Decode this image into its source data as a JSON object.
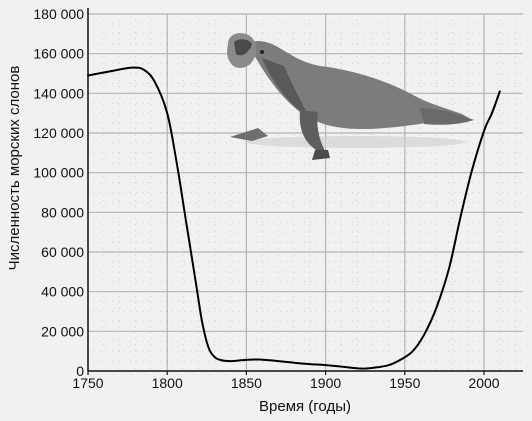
{
  "chart_data": {
    "type": "line",
    "xlabel": "Время (годы)",
    "ylabel": "Численность морских слонов",
    "xlim": [
      1750,
      2025
    ],
    "ylim": [
      0,
      180000
    ],
    "x_ticks": [
      1750,
      1800,
      1850,
      1900,
      1950,
      2000
    ],
    "x_tick_labels": [
      "1750",
      "1800",
      "1850",
      "1900",
      "1950",
      "2000"
    ],
    "y_ticks": [
      0,
      20000,
      40000,
      60000,
      80000,
      100000,
      120000,
      140000,
      160000,
      180000
    ],
    "y_tick_labels": [
      "0",
      "20 000",
      "40 000",
      "60 000",
      "80 000",
      "100 000",
      "120 000",
      "140 000",
      "160 000",
      "180 000"
    ],
    "grid": true,
    "illustration": "elephant-seal",
    "colors": {
      "background": "#f1f1f1",
      "grid_major": "#b4b4b4",
      "grid_minor": "#cfcfcf",
      "line": "#000000",
      "seal_body": "#7a7a7a",
      "seal_dark": "#4a4a4a"
    },
    "series": [
      {
        "x": [
          1750,
          1760,
          1770,
          1778,
          1785,
          1792,
          1800,
          1806,
          1812,
          1818,
          1822,
          1826,
          1830,
          1834,
          1840,
          1848,
          1858,
          1870,
          1880,
          1890,
          1900,
          1910,
          1918,
          1924,
          1932,
          1940,
          1948,
          1955,
          1962,
          1970,
          1978,
          1985,
          1992,
          2000,
          2005,
          2010
        ],
        "y": [
          149000,
          150500,
          152000,
          153000,
          152000,
          146000,
          130000,
          105000,
          75000,
          45000,
          25000,
          12000,
          7000,
          5500,
          5000,
          5500,
          5800,
          5000,
          4200,
          3500,
          3000,
          2200,
          1500,
          1200,
          1800,
          3000,
          6000,
          10000,
          18000,
          32000,
          52000,
          77000,
          100000,
          121000,
          130000,
          141000
        ]
      }
    ]
  }
}
